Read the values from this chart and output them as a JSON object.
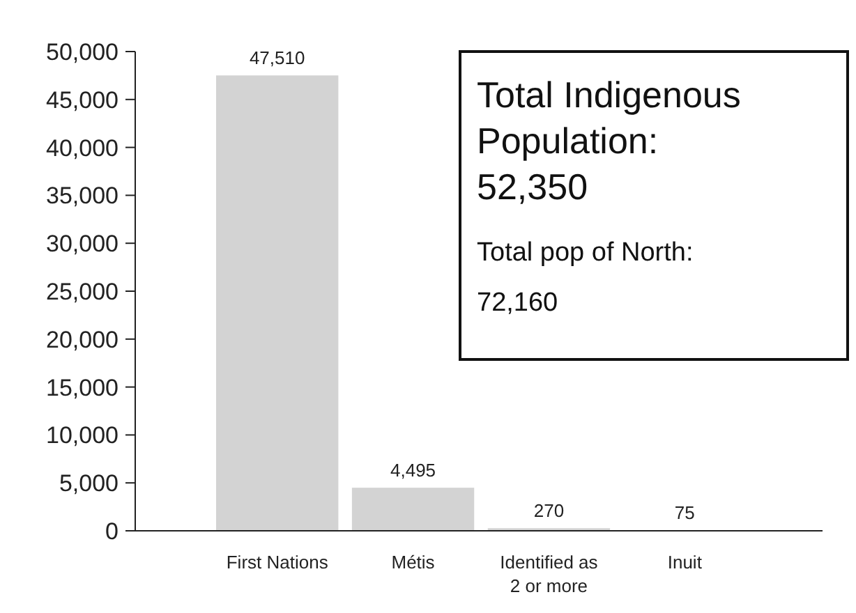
{
  "chart_data": {
    "type": "bar",
    "categories": [
      "First Nations",
      "Métis",
      "Identified as 2 or more",
      "Inuit"
    ],
    "values": [
      47510,
      4495,
      270,
      75
    ],
    "color": "#d3d3d3",
    "value_labels": [
      "47,510",
      "4,495",
      "270",
      "75"
    ],
    "ylim": [
      0,
      50000
    ],
    "yticks": [
      {
        "value": 0,
        "label": "0"
      },
      {
        "value": 5000,
        "label": "5,000"
      },
      {
        "value": 10000,
        "label": "10,000"
      },
      {
        "value": 15000,
        "label": "15,000"
      },
      {
        "value": 20000,
        "label": "20,000"
      },
      {
        "value": 25000,
        "label": "25,000"
      },
      {
        "value": 30000,
        "label": "30,000"
      },
      {
        "value": 35000,
        "label": "35,000"
      },
      {
        "value": 40000,
        "label": "40,000"
      },
      {
        "value": 45000,
        "label": "45,000"
      },
      {
        "value": 50000,
        "label": "50,000"
      }
    ],
    "grid": false,
    "annotations": [
      "Total Indigenous Population: 52,350",
      "Total pop of North: 72,160"
    ]
  }
}
